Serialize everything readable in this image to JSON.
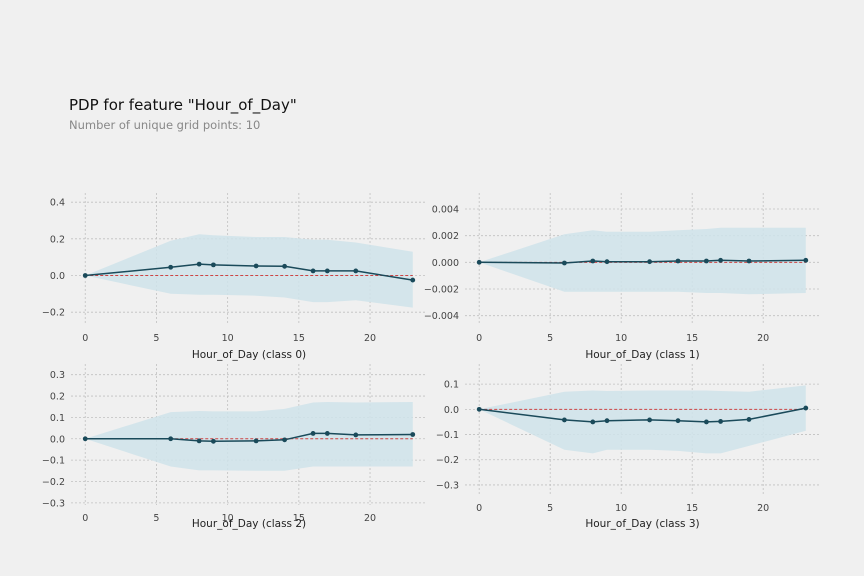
{
  "title": "PDP for feature \"Hour_of_Day\"",
  "subtitle": "Number of unique grid points: 10",
  "colors": {
    "background": "#f0f0f0",
    "line": "#1a4a5a",
    "band": "#cfe3ea",
    "zero_line": "#cc4444",
    "grid": "#c0c0c0"
  },
  "chart_data": [
    {
      "type": "line",
      "xlabel": "Hour_of_Day (class 0)",
      "x": [
        0,
        6,
        8,
        9,
        12,
        14,
        16,
        17,
        19,
        23
      ],
      "y": [
        0.0,
        0.045,
        0.062,
        0.058,
        0.052,
        0.05,
        0.025,
        0.025,
        0.025,
        -0.025
      ],
      "upper": [
        0.0,
        0.19,
        0.225,
        0.22,
        0.21,
        0.21,
        0.195,
        0.195,
        0.18,
        0.13
      ],
      "lower": [
        0.0,
        -0.1,
        -0.105,
        -0.105,
        -0.11,
        -0.12,
        -0.145,
        -0.145,
        -0.135,
        -0.175
      ],
      "xlim": [
        -1,
        24
      ],
      "ylim": [
        -0.27,
        0.45
      ],
      "xticks": [
        0,
        5,
        10,
        15,
        20
      ],
      "xtick_labels": [
        "0",
        "5",
        "10",
        "15",
        "20"
      ],
      "yticks": [
        -0.2,
        0.0,
        0.2,
        0.4
      ],
      "ytick_labels": [
        "−0.2",
        "0.0",
        "0.2",
        "0.4"
      ]
    },
    {
      "type": "line",
      "xlabel": "Hour_of_Day (class 1)",
      "x": [
        0,
        6,
        8,
        9,
        12,
        14,
        16,
        17,
        19,
        23
      ],
      "y": [
        0.0,
        -5e-05,
        0.0001,
        5e-05,
        5e-05,
        0.0001,
        0.0001,
        0.00015,
        0.0001,
        0.00015
      ],
      "upper": [
        0.0,
        0.0021,
        0.0024,
        0.0023,
        0.0023,
        0.0024,
        0.0025,
        0.0026,
        0.0026,
        0.0026
      ],
      "lower": [
        0.0,
        -0.0022,
        -0.0022,
        -0.0022,
        -0.0022,
        -0.0022,
        -0.0023,
        -0.0023,
        -0.0024,
        -0.0023
      ],
      "xlim": [
        -1,
        24
      ],
      "ylim": [
        -0.0047,
        0.0052
      ],
      "xticks": [
        0,
        5,
        10,
        15,
        20
      ],
      "xtick_labels": [
        "0",
        "5",
        "10",
        "15",
        "20"
      ],
      "yticks": [
        -0.004,
        -0.002,
        0.0,
        0.002,
        0.004
      ],
      "ytick_labels": [
        "−0.004",
        "−0.002",
        "0.000",
        "0.002",
        "0.004"
      ]
    },
    {
      "type": "line",
      "xlabel": "Hour_of_Day (class 2)",
      "x": [
        0,
        6,
        8,
        9,
        12,
        14,
        16,
        17,
        19,
        23
      ],
      "y": [
        0.0,
        0.0,
        -0.01,
        -0.012,
        -0.01,
        -0.005,
        0.025,
        0.025,
        0.018,
        0.02
      ],
      "upper": [
        0.0,
        0.125,
        0.13,
        0.128,
        0.128,
        0.14,
        0.17,
        0.172,
        0.17,
        0.172
      ],
      "lower": [
        0.0,
        -0.13,
        -0.148,
        -0.148,
        -0.15,
        -0.15,
        -0.13,
        -0.13,
        -0.13,
        -0.13
      ],
      "xlim": [
        -1,
        24
      ],
      "ylim": [
        -0.31,
        0.35
      ],
      "xticks": [
        0,
        5,
        10,
        15,
        20
      ],
      "xtick_labels": [
        "0",
        "5",
        "10",
        "15",
        "20"
      ],
      "yticks": [
        -0.3,
        -0.2,
        -0.1,
        0.0,
        0.1,
        0.2,
        0.3
      ],
      "ytick_labels": [
        "−0.3",
        "−0.2",
        "−0.1",
        "0.0",
        "0.1",
        "0.2",
        "0.3"
      ]
    },
    {
      "type": "line",
      "xlabel": "Hour_of_Day (class 3)",
      "x": [
        0,
        6,
        8,
        9,
        12,
        14,
        16,
        17,
        19,
        23
      ],
      "y": [
        0.0,
        -0.042,
        -0.05,
        -0.045,
        -0.042,
        -0.045,
        -0.05,
        -0.048,
        -0.04,
        0.005
      ],
      "upper": [
        0.0,
        0.07,
        0.075,
        0.073,
        0.075,
        0.075,
        0.075,
        0.073,
        0.07,
        0.095
      ],
      "lower": [
        0.0,
        -0.16,
        -0.175,
        -0.16,
        -0.16,
        -0.165,
        -0.175,
        -0.175,
        -0.145,
        -0.085
      ],
      "xlim": [
        -1,
        24
      ],
      "ylim": [
        -0.34,
        0.18
      ],
      "xticks": [
        0,
        5,
        10,
        15,
        20
      ],
      "xtick_labels": [
        "0",
        "5",
        "10",
        "15",
        "20"
      ],
      "yticks": [
        -0.3,
        -0.2,
        -0.1,
        0.0,
        0.1
      ],
      "ytick_labels": [
        "−0.3",
        "−0.2",
        "−0.1",
        "0.0",
        "0.1"
      ]
    }
  ]
}
